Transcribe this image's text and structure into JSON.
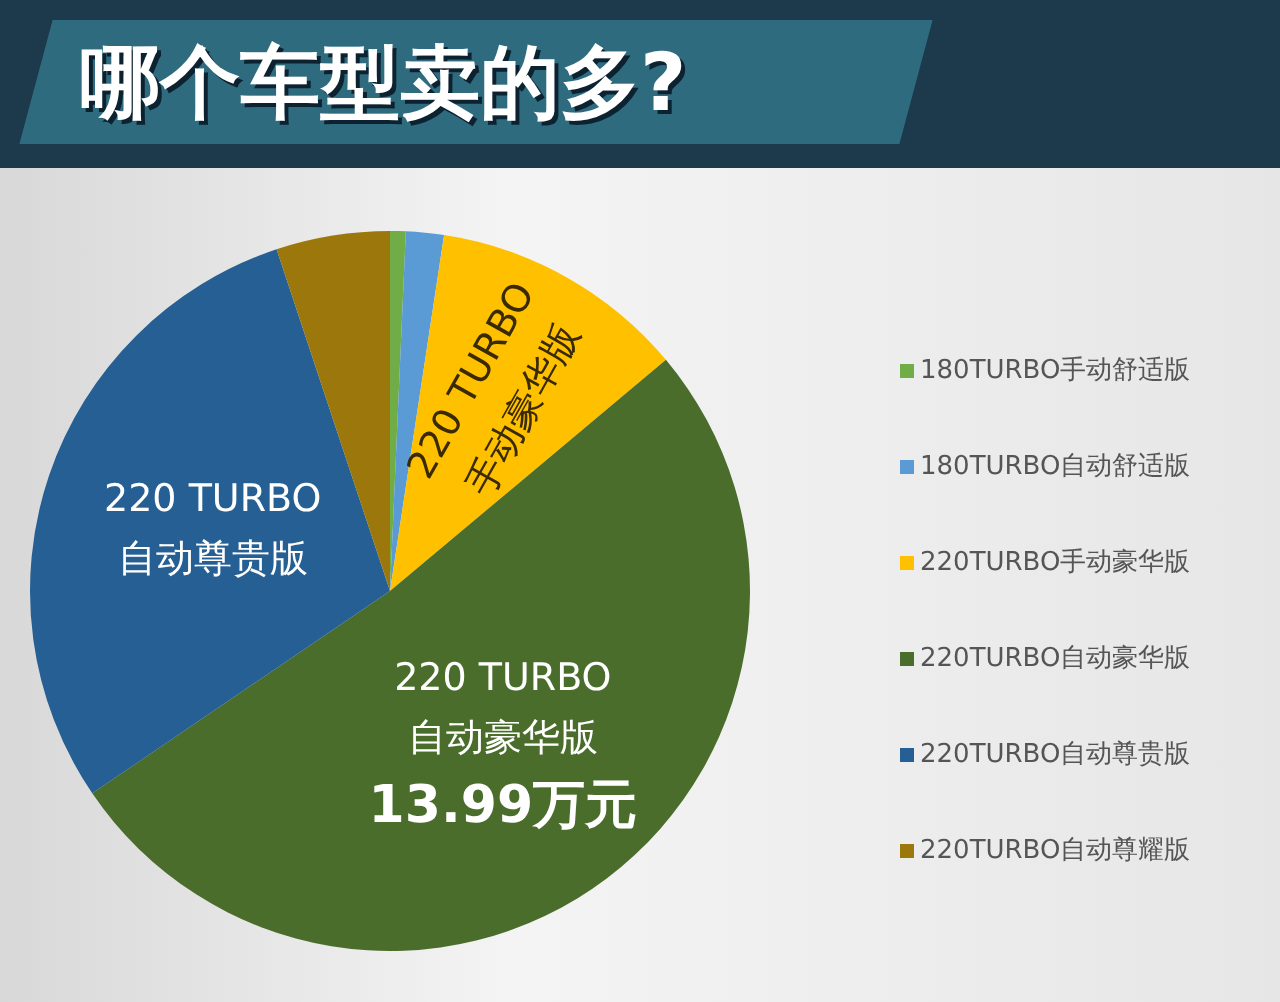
{
  "chart_data": {
    "type": "pie",
    "title": "哪个车型卖的多?",
    "categories": [
      "180TURBO手动舒适版",
      "180TURBO自动舒适版",
      "220TURBO手动豪华版",
      "220TURBO自动豪华版",
      "220TURBO自动尊贵版",
      "220TURBO自动尊耀版"
    ],
    "values": [
      0.7,
      1.7,
      11.5,
      51.6,
      29.4,
      5.1
    ],
    "colors": [
      "#70ad47",
      "#5b9bd5",
      "#ffc000",
      "#4a6d2c",
      "#265f93",
      "#9c780c"
    ],
    "annotations": [
      {
        "text": "220 TURBO\n手动豪华版",
        "x": "220TURBO手动豪华版"
      },
      {
        "text": "220 TURBO\n自动豪华版\n13.99万元",
        "x": "220TURBO自动豪华版"
      },
      {
        "text": "220 TURBO\n自动尊贵版",
        "x": "220TURBO自动尊贵版"
      }
    ],
    "legend": "right"
  }
}
